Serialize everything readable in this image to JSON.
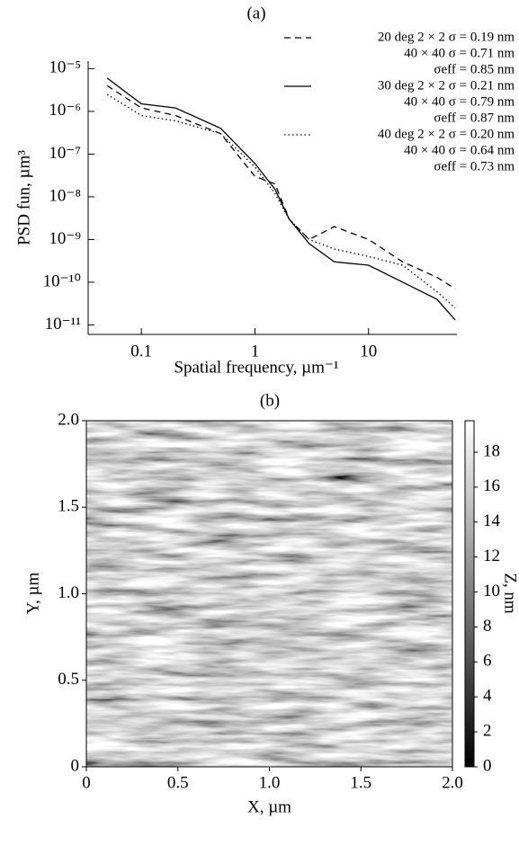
{
  "chart_data": [
    {
      "type": "line",
      "title": "(a)",
      "xlabel": "Spatial frequency, µm⁻¹",
      "ylabel": "PSD fun, µm³",
      "xscale": "log",
      "yscale": "log",
      "xlim": [
        0.034,
        60
      ],
      "ylim": [
        6e-12,
        1.5e-05
      ],
      "xticks": [
        0.1,
        1,
        10
      ],
      "yticks": [
        {
          "value": 1e-11,
          "label": "10⁻¹¹"
        },
        {
          "value": 1e-10,
          "label": "10⁻¹⁰"
        },
        {
          "value": 1e-09,
          "label": "10⁻⁹"
        },
        {
          "value": 1e-08,
          "label": "10⁻⁸"
        },
        {
          "value": 1e-07,
          "label": "10⁻⁷"
        },
        {
          "value": 1e-06,
          "label": "10⁻⁶"
        },
        {
          "value": 1e-05,
          "label": "10⁻⁵"
        }
      ],
      "x": [
        0.05,
        0.1,
        0.2,
        0.5,
        1,
        1.5,
        2,
        3,
        5,
        10,
        20,
        40,
        58
      ],
      "series": [
        {
          "name": "20 deg 2 × 2 σ = 0.19 nm",
          "notes": [
            "40 × 40 σ = 0.71 nm",
            "σeff = 0.85 nm"
          ],
          "color": "#000000",
          "dash": "dashed",
          "values": [
            4e-06,
            1.2e-06,
            8e-07,
            3e-07,
            3e-08,
            2e-08,
            3e-09,
            1e-09,
            2e-09,
            1e-09,
            3e-10,
            1.3e-10,
            7e-11
          ]
        },
        {
          "name": "30 deg 2 × 2 σ = 0.21 nm",
          "notes": [
            "40 × 40 σ = 0.79 nm",
            "σeff = 0.87 nm"
          ],
          "color": "#000000",
          "dash": "solid",
          "values": [
            6e-06,
            1.5e-06,
            1.2e-06,
            4e-07,
            6e-08,
            1.5e-08,
            3e-09,
            8e-10,
            3e-10,
            2.5e-10,
            1e-10,
            4e-11,
            1.3e-11
          ]
        },
        {
          "name": "40 deg 2 × 2 σ = 0.20 nm",
          "notes": [
            "40 × 40 σ = 0.64 nm",
            "σeff = 0.73 nm"
          ],
          "color": "#000000",
          "dash": "dotted",
          "values": [
            2.5e-06,
            8e-07,
            6e-07,
            3e-07,
            5e-08,
            1.2e-08,
            3e-09,
            1e-09,
            6e-10,
            4e-10,
            2.5e-10,
            6e-11,
            2.5e-11
          ]
        }
      ]
    },
    {
      "type": "heatmap",
      "title": "(b)",
      "xlabel": "X, µm",
      "ylabel": "Y, µm",
      "zlabel": "Z, nm",
      "xlim": [
        0,
        2
      ],
      "ylim": [
        0,
        2
      ],
      "zlim": [
        0,
        19.8
      ],
      "xticks": [
        0,
        0.5,
        {
          "value": 1,
          "label": "1.0"
        },
        1.5,
        {
          "value": 2,
          "label": "2.0"
        }
      ],
      "yticks": [
        0,
        0.5,
        {
          "value": 1,
          "label": "1.0"
        },
        1.5,
        {
          "value": 2,
          "label": "2.0"
        }
      ],
      "zticks": [
        0,
        2,
        4,
        6,
        8,
        10,
        12,
        14,
        16,
        18
      ]
    }
  ]
}
